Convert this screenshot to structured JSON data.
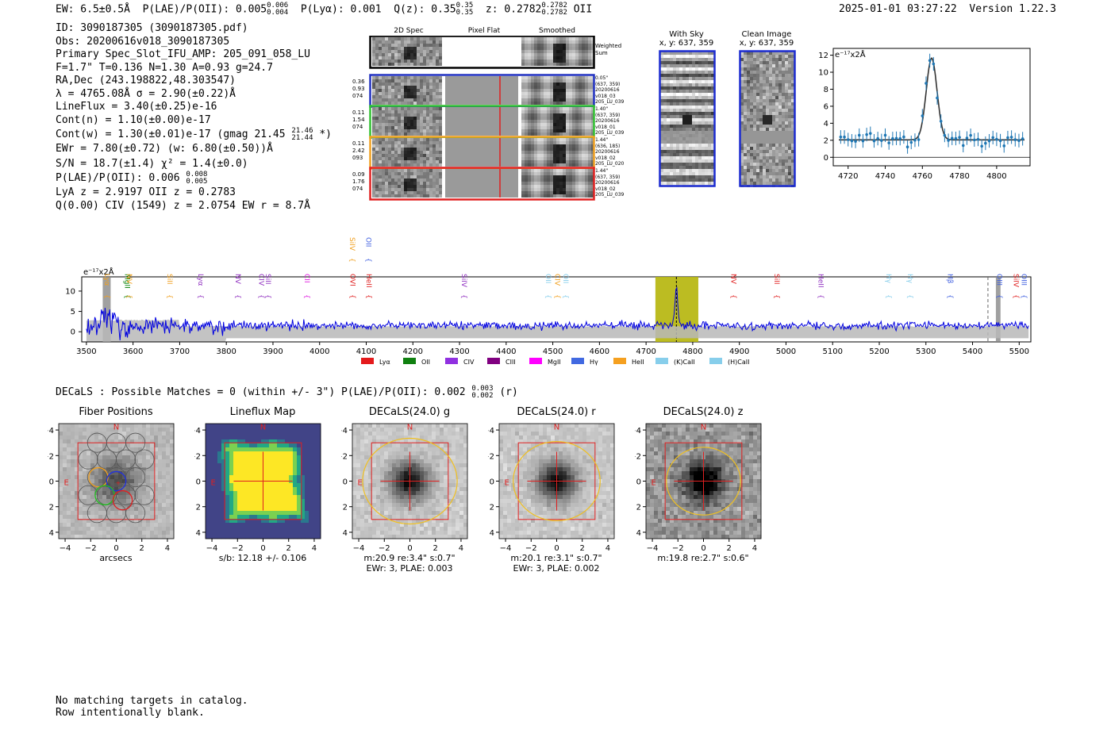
{
  "header": {
    "ew": "EW: 6.5±0.5Å",
    "plae_label": "P(LAE)/P(OII): 0.005",
    "plae_hi": "0.006",
    "plae_lo": "0.004",
    "plya": "P(Lyα): 0.001",
    "qz_label": "Q(z): 0.35",
    "qz_hi": "0.35",
    "qz_lo": "0.35",
    "z_label": "z: 0.2782",
    "z_hi": "0.2782",
    "z_lo": "0.2782",
    "z_line": "OII",
    "timestamp": "2025-01-01 03:27:22",
    "version": "Version 1.22.3"
  },
  "info": {
    "id": "ID: 3090187305 (3090187305.pdf)",
    "obs": "Obs: 20200616v018_3090187305",
    "slot": "Primary Spec_Slot_IFU_AMP: 205_091_058_LU",
    "fwhm": "F=1.7\"  T=0.136  N=1.30  A=0.93  g=24.7",
    "radec": "RA,Dec (243.198822,48.303547)",
    "lambda": "λ = 4765.08Å   σ = 2.90(±0.22)Å",
    "lineflux": "LineFlux = 3.40(±0.25)e-16",
    "contn": "Cont(n) = 1.10(±0.00)e-17",
    "contw": "Cont(w) = 1.30(±0.01)e-17 (gmag 21.45",
    "contw_hi": "21.46",
    "contw_lo": "21.44",
    "contw_end": "*)",
    "ewr": "EWr = 7.80(±0.72) (w: 6.80(±0.50))Å",
    "sn": "S/N = 18.7(±1.4)  χ² = 1.4(±0.0)",
    "plae2": "P(LAE)/P(OII): 0.006",
    "plae2_hi": "0.008",
    "plae2_lo": "0.005",
    "lya_z": "LyA z = 2.9197  OII z = 0.2783",
    "civ": "Q(0.00) CIV (1549) z = 2.0754  EW r = 8.7Å"
  },
  "strips": {
    "headers": [
      "2D Spec",
      "Pixel Flat",
      "Smoothed"
    ],
    "weighted_label_1": "Weighted",
    "weighted_label_2": "Sum",
    "rows": [
      {
        "left": [
          "0.36",
          "0.93",
          "074"
        ],
        "right": [
          "0.05\"",
          "(637, 359)",
          "20200616",
          "v018_03",
          "205_LU_039"
        ],
        "color": "#2030c0"
      },
      {
        "left": [
          "0.11",
          "1.54",
          "074"
        ],
        "right": [
          "1.40\"",
          "(637, 359)",
          "20200616",
          "v018_01",
          "205_LU_039"
        ],
        "color": "#30c030"
      },
      {
        "left": [
          "0.11",
          "2.42",
          "093"
        ],
        "right": [
          "1.44\"",
          "(636, 185)",
          "20200616",
          "v018_02",
          "205_LU_020"
        ],
        "color": "#f0a020"
      },
      {
        "left": [
          "0.09",
          "1.76",
          "074"
        ],
        "right": [
          "1.44\"",
          "(637, 359)",
          "20200616",
          "v018_02",
          "205_LU_039"
        ],
        "color": "#e02020"
      }
    ]
  },
  "sky": {
    "with_sky_title": "With Sky",
    "with_sky_xy": "x, y: 637, 359",
    "clean_title": "Clean Image",
    "clean_xy": "x, y: 637, 359"
  },
  "fit_plot": {
    "unit": "e⁻¹⁷x2Å",
    "x_ticks": [
      "4720",
      "4740",
      "4760",
      "4780",
      "4800"
    ],
    "y_ticks": [
      "0",
      "2",
      "4",
      "6",
      "8",
      "10",
      "12"
    ]
  },
  "spectrum": {
    "unit": "e⁻¹⁷x2Å",
    "y_ticks": [
      "0",
      "5",
      "10"
    ],
    "x_ticks": [
      "3500",
      "3600",
      "3700",
      "3800",
      "3900",
      "4000",
      "4100",
      "4200",
      "4300",
      "4400",
      "4500",
      "4600",
      "4700",
      "4800",
      "4900",
      "5000",
      "5100",
      "5200",
      "5300",
      "5400",
      "5500"
    ],
    "line_labels": [
      {
        "name": "Lyα",
        "wave": 3534,
        "color": "#f0a020",
        "row": 0
      },
      {
        "name": "MgII",
        "wave": 3578,
        "color": "#008000",
        "row": 0
      },
      {
        "name": "NV",
        "wave": 3582,
        "color": "#f0a020",
        "row": 0
      },
      {
        "name": "SiII",
        "wave": 3669,
        "color": "#f0a020",
        "row": 0
      },
      {
        "name": "Lyα",
        "wave": 3735,
        "color": "#9030c0",
        "row": 0
      },
      {
        "name": "NV",
        "wave": 3815,
        "color": "#9030c0",
        "row": 0
      },
      {
        "name": "CIV",
        "wave": 3865,
        "color": "#9030c0",
        "row": 0
      },
      {
        "name": "SiII",
        "wave": 3880,
        "color": "#9030c0",
        "row": 0
      },
      {
        "name": "CII",
        "wave": 3963,
        "color": "#e020e0",
        "row": 0
      },
      {
        "name": "SiIV",
        "wave": 4060,
        "color": "#f0a020",
        "row": 1
      },
      {
        "name": "OVI",
        "wave": 4061,
        "color": "#e02020",
        "row": 0
      },
      {
        "name": "OII",
        "wave": 4095,
        "color": "#4060e0",
        "row": 1
      },
      {
        "name": "HeII",
        "wave": 4096,
        "color": "#e02020",
        "row": 0
      },
      {
        "name": "SiIV",
        "wave": 4300,
        "color": "#9030c0",
        "row": 0
      },
      {
        "name": "OII",
        "wave": 4480,
        "color": "#87ceeb",
        "row": 0
      },
      {
        "name": "CIV",
        "wave": 4500,
        "color": "#f0a020",
        "row": 0
      },
      {
        "name": "OII",
        "wave": 4518,
        "color": "#87ceeb",
        "row": 0
      },
      {
        "name": "NV",
        "wave": 4878,
        "color": "#e02020",
        "row": 0
      },
      {
        "name": "SiII",
        "wave": 4970,
        "color": "#e02020",
        "row": 0
      },
      {
        "name": "HeII",
        "wave": 5065,
        "color": "#9030c0",
        "row": 0
      },
      {
        "name": "Hγ",
        "wave": 5210,
        "color": "#87ceeb",
        "row": 0
      },
      {
        "name": "Hγ",
        "wave": 5256,
        "color": "#87ceeb",
        "row": 0
      },
      {
        "name": "Hβ",
        "wave": 5342,
        "color": "#4060e0",
        "row": 0
      },
      {
        "name": "OIII",
        "wave": 5448,
        "color": "#4060e0",
        "row": 0
      },
      {
        "name": "SiIV",
        "wave": 5483,
        "color": "#e02020",
        "row": 0
      },
      {
        "name": "OIII",
        "wave": 5500,
        "color": "#4060e0",
        "row": 0
      }
    ],
    "legend": [
      {
        "name": "Lyα",
        "color": "#e41a1c"
      },
      {
        "name": "OII",
        "color": "#108010"
      },
      {
        "name": "CIV",
        "color": "#9030e0"
      },
      {
        "name": "CIII",
        "color": "#800080"
      },
      {
        "name": "MgII",
        "color": "#ff00ff"
      },
      {
        "name": "Hγ",
        "color": "#4169e1"
      },
      {
        "name": "HeII",
        "color": "#f5a020"
      },
      {
        "name": "(K)CaII",
        "color": "#87ceeb"
      },
      {
        "name": "(H)CaII",
        "color": "#87ceeb"
      }
    ]
  },
  "decals": {
    "title_main": "DECaLS : Possible Matches = 0 (within +/- 3\")  P(LAE)/P(OII): 0.002",
    "title_hi": "0.003",
    "title_lo": "0.002",
    "title_end": "(r)"
  },
  "thumbs": [
    {
      "title": "Fiber Positions",
      "cap1": "arcsecs",
      "cap2": ""
    },
    {
      "title": "Lineflux Map",
      "cap1": "s/b: 12.18 +/- 0.106",
      "cap2": ""
    },
    {
      "title": "DECaLS(24.0) g",
      "cap1": "m:20.9  re:3.4\"  s:0.7\"",
      "cap2": "EWr: 3, PLAE: 0.003"
    },
    {
      "title": "DECaLS(24.0) r",
      "cap1": "m:20.1  re:3.1\"  s:0.7\"",
      "cap2": "EWr: 3, PLAE: 0.002"
    },
    {
      "title": "DECaLS(24.0) z",
      "cap1": "m:19.8  re:2.7\"  s:0.6\"",
      "cap2": ""
    }
  ],
  "thumb_axes": {
    "ticks": [
      "−4",
      "−2",
      "0",
      "2",
      "4"
    ],
    "north": "N",
    "east": "E"
  },
  "footer": {
    "line1": "No matching targets in catalog.",
    "line2": "Row intentionally blank."
  },
  "colors": {
    "spectrum_line": "#0000e0",
    "fit_points": "#1f77b4",
    "highlight": "#b5b50a",
    "aperture": "#e02020",
    "ellipse": "#f0c020"
  }
}
